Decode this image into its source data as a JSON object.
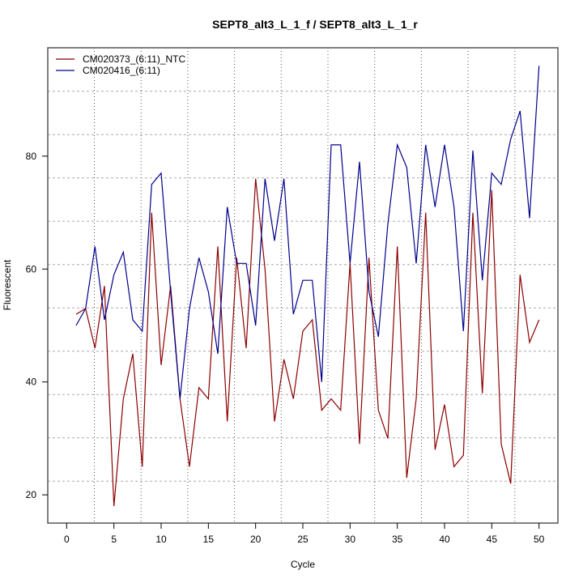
{
  "chart_data": {
    "type": "line",
    "title": "SEPT8_alt3_L_1_f / SEPT8_alt3_L_1_r",
    "xlabel": "Cycle",
    "ylabel": "Fluorescent",
    "xlim": [
      -2.0,
      52.0
    ],
    "ylim": [
      15.0,
      99.2
    ],
    "x_ticks": [
      0,
      5,
      10,
      15,
      20,
      25,
      30,
      35,
      40,
      45,
      50
    ],
    "x_tick_labels": [
      "0",
      "5",
      "10",
      "15",
      "20",
      "25",
      "30",
      "35",
      "40",
      "45",
      "50"
    ],
    "y_ticks": [
      20,
      40,
      60,
      80
    ],
    "y_tick_labels": [
      "20",
      "40",
      "60",
      "80"
    ],
    "grid": true,
    "legend_position": "top-left",
    "x": [
      1,
      2,
      3,
      4,
      5,
      6,
      7,
      8,
      9,
      10,
      11,
      12,
      13,
      14,
      15,
      16,
      17,
      18,
      19,
      20,
      21,
      22,
      23,
      24,
      25,
      26,
      27,
      28,
      29,
      30,
      31,
      32,
      33,
      34,
      35,
      36,
      37,
      38,
      39,
      40,
      41,
      42,
      43,
      44,
      45,
      46,
      47,
      48,
      49,
      50
    ],
    "series": [
      {
        "name": "CM020373_(6:11)_NTC",
        "color": "#8b0000",
        "values": [
          52,
          53,
          46,
          57,
          18,
          37,
          45,
          25,
          70,
          43,
          57,
          37,
          25,
          39,
          37,
          64,
          33,
          62,
          46,
          76,
          60,
          33,
          44,
          37,
          49,
          51,
          35,
          37,
          35,
          61,
          29,
          62,
          35,
          30,
          64,
          23,
          37,
          70,
          28,
          36,
          25,
          27,
          70,
          38,
          74,
          29,
          22,
          59,
          47,
          51
        ]
      },
      {
        "name": "CM020416_(6:11)",
        "color": "#00008b",
        "values": [
          50,
          53,
          64,
          51,
          59,
          63,
          51,
          49,
          75,
          77,
          56,
          37,
          53,
          62,
          56,
          45,
          71,
          61,
          61,
          50,
          76,
          65,
          76,
          52,
          58,
          58,
          40,
          82,
          82,
          61,
          79,
          56,
          48,
          68,
          82,
          78,
          61,
          82,
          71,
          82,
          71,
          49,
          81,
          58,
          77,
          75,
          83,
          88,
          69,
          96
        ]
      }
    ]
  }
}
